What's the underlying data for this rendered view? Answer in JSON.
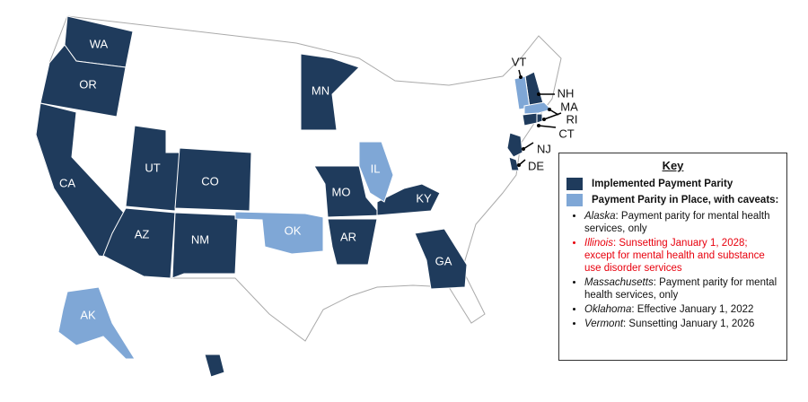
{
  "map": {
    "key": {
      "title": "Key",
      "items": [
        {
          "label": "Implemented Payment Parity",
          "color": "#1f3b5c",
          "states": [
            "WA",
            "OR",
            "CA",
            "UT",
            "CO",
            "AZ",
            "NM",
            "MN",
            "MO",
            "AR",
            "KY",
            "GA",
            "HI",
            "NH",
            "NJ",
            "DE",
            "CT",
            "RI"
          ]
        },
        {
          "label": "Payment Parity in Place, with caveats:",
          "color": "#7fa7d6",
          "states": [
            "VT",
            "IL",
            "OK",
            "AK",
            "MA"
          ],
          "caveats": [
            {
              "state": "Alaska",
              "text": ": Payment parity for mental health services, only"
            },
            {
              "state": "Illinois",
              "text": ": Sunsetting January 1, 2028; except for mental health and substance use disorder services",
              "color": "#e8000d"
            },
            {
              "state": "Massachusetts",
              "text": ": Payment parity for mental health services, only"
            },
            {
              "state": "Oklahoma",
              "text": ": Effective January 1, 2022"
            },
            {
              "state": "Vermont",
              "text": ": Sunsetting January 1, 2026"
            }
          ]
        }
      ]
    }
  }
}
